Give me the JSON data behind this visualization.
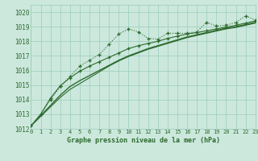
{
  "background_color": "#cce8dd",
  "grid_color": "#99ccbb",
  "line_color": "#2d6a2d",
  "title": "Graphe pression niveau de la mer (hPa)",
  "xlim": [
    0,
    23
  ],
  "ylim": [
    1012,
    1020.5
  ],
  "xticks": [
    0,
    1,
    2,
    3,
    4,
    5,
    6,
    7,
    8,
    9,
    10,
    11,
    12,
    13,
    14,
    15,
    16,
    17,
    18,
    19,
    20,
    21,
    22,
    23
  ],
  "yticks": [
    1012,
    1013,
    1014,
    1015,
    1016,
    1017,
    1018,
    1019,
    1020
  ],
  "series1_dotted": {
    "x": [
      0,
      1,
      2,
      3,
      4,
      5,
      6,
      7,
      8,
      9,
      10,
      11,
      12,
      13,
      14,
      15,
      16,
      17,
      18,
      19,
      20,
      21,
      22,
      23
    ],
    "y": [
      1012.2,
      1013.0,
      1014.0,
      1014.9,
      1015.6,
      1016.3,
      1016.7,
      1017.1,
      1017.8,
      1018.5,
      1018.85,
      1018.65,
      1018.2,
      1018.15,
      1018.55,
      1018.55,
      1018.55,
      1018.65,
      1019.3,
      1019.05,
      1019.1,
      1019.3,
      1019.75,
      1019.45
    ]
  },
  "series2_line": {
    "x": [
      0,
      1,
      2,
      3,
      4,
      5,
      6,
      7,
      8,
      9,
      10,
      11,
      12,
      13,
      14,
      15,
      16,
      17,
      18,
      19,
      20,
      21,
      22,
      23
    ],
    "y": [
      1012.2,
      1012.85,
      1013.5,
      1014.15,
      1014.7,
      1015.1,
      1015.5,
      1015.9,
      1016.3,
      1016.65,
      1016.95,
      1017.2,
      1017.45,
      1017.65,
      1017.85,
      1018.05,
      1018.25,
      1018.4,
      1018.55,
      1018.7,
      1018.85,
      1018.95,
      1019.1,
      1019.25
    ]
  },
  "series3_line": {
    "x": [
      0,
      1,
      2,
      3,
      4,
      5,
      6,
      7,
      8,
      9,
      10,
      11,
      12,
      13,
      14,
      15,
      16,
      17,
      18,
      19,
      20,
      21,
      22,
      23
    ],
    "y": [
      1012.2,
      1012.9,
      1013.6,
      1014.3,
      1014.9,
      1015.3,
      1015.65,
      1016.0,
      1016.35,
      1016.7,
      1017.0,
      1017.25,
      1017.5,
      1017.7,
      1017.9,
      1018.1,
      1018.3,
      1018.45,
      1018.6,
      1018.75,
      1018.9,
      1019.0,
      1019.15,
      1019.3
    ]
  },
  "series4_diamond": {
    "x": [
      0,
      1,
      2,
      3,
      4,
      5,
      6,
      7,
      8,
      9,
      10,
      11,
      12,
      13,
      14,
      15,
      16,
      17,
      18,
      19,
      20,
      21,
      22,
      23
    ],
    "y": [
      1012.2,
      1013.0,
      1014.1,
      1014.95,
      1015.5,
      1015.95,
      1016.3,
      1016.6,
      1016.9,
      1017.2,
      1017.5,
      1017.7,
      1017.85,
      1018.0,
      1018.2,
      1018.35,
      1018.5,
      1018.6,
      1018.72,
      1018.85,
      1018.97,
      1019.1,
      1019.25,
      1019.4
    ]
  }
}
